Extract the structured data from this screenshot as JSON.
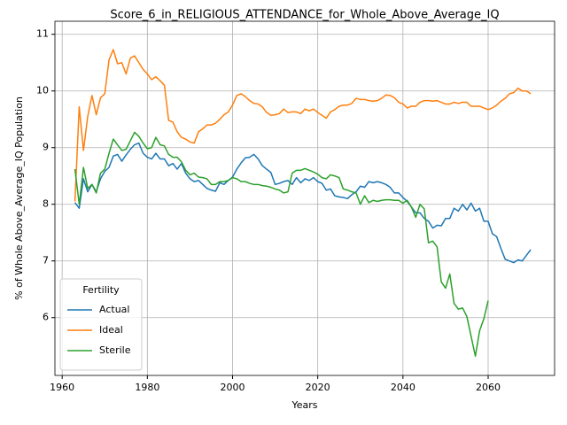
{
  "chart_data": {
    "type": "line",
    "title": "Score_6_in_RELIGIOUS_ATTENDANCE_for_Whole_Above_Average_IQ",
    "xlabel": "Years",
    "ylabel": "% of Whole Above_Average_IQ Population",
    "legend_title": "Fertility",
    "legend_position": "lower left",
    "grid": true,
    "xlim": [
      1958.3,
      2075.6
    ],
    "ylim": [
      4.98,
      11.23
    ],
    "xticks": [
      1960,
      1980,
      2000,
      2020,
      2040,
      2060
    ],
    "yticks": [
      6,
      7,
      8,
      9,
      10,
      11
    ],
    "x": [
      1963,
      1964,
      1965,
      1966,
      1967,
      1968,
      1969,
      1970,
      1971,
      1972,
      1973,
      1974,
      1975,
      1976,
      1977,
      1978,
      1979,
      1980,
      1981,
      1982,
      1983,
      1984,
      1985,
      1986,
      1987,
      1988,
      1989,
      1990,
      1991,
      1992,
      1993,
      1994,
      1995,
      1996,
      1997,
      1998,
      1999,
      2000,
      2001,
      2002,
      2003,
      2004,
      2005,
      2006,
      2007,
      2008,
      2009,
      2010,
      2011,
      2012,
      2013,
      2014,
      2015,
      2016,
      2017,
      2018,
      2019,
      2020,
      2021,
      2022,
      2023,
      2024,
      2025,
      2026,
      2027,
      2028,
      2029,
      2030,
      2031,
      2032,
      2033,
      2034,
      2035,
      2036,
      2037,
      2038,
      2039,
      2040,
      2041,
      2042,
      2043,
      2044,
      2045,
      2046,
      2047,
      2048,
      2049,
      2050,
      2051,
      2052,
      2053,
      2054,
      2055,
      2056,
      2057,
      2058,
      2059,
      2060,
      2061,
      2062,
      2063,
      2064,
      2065,
      2066,
      2067,
      2068,
      2069,
      2070
    ],
    "series": [
      {
        "name": "Actual",
        "color": "#1f77b4",
        "values": [
          8.03,
          7.93,
          8.45,
          8.22,
          8.35,
          8.22,
          8.45,
          8.58,
          8.65,
          8.85,
          8.88,
          8.76,
          8.87,
          8.97,
          9.05,
          9.08,
          8.9,
          8.83,
          8.8,
          8.9,
          8.8,
          8.8,
          8.68,
          8.72,
          8.62,
          8.72,
          8.55,
          8.45,
          8.4,
          8.42,
          8.35,
          8.28,
          8.25,
          8.23,
          8.38,
          8.35,
          8.42,
          8.48,
          8.62,
          8.73,
          8.82,
          8.83,
          8.88,
          8.8,
          8.68,
          8.62,
          8.56,
          8.35,
          8.37,
          8.4,
          8.42,
          8.35,
          8.47,
          8.38,
          8.45,
          8.42,
          8.47,
          8.4,
          8.37,
          8.25,
          8.27,
          8.15,
          8.13,
          8.12,
          8.1,
          8.17,
          8.22,
          8.32,
          8.3,
          8.4,
          8.38,
          8.4,
          8.38,
          8.35,
          8.3,
          8.2,
          8.2,
          8.12,
          8.05,
          7.95,
          7.85,
          7.85,
          7.75,
          7.7,
          7.58,
          7.63,
          7.62,
          7.75,
          7.75,
          7.93,
          7.88,
          8.0,
          7.9,
          8.02,
          7.88,
          7.93,
          7.7,
          7.7,
          7.48,
          7.43,
          7.22,
          7.03,
          7.0,
          6.97,
          7.02,
          7.0,
          7.1,
          7.2
        ]
      },
      {
        "name": "Ideal",
        "color": "#ff7f0e",
        "values": [
          8.05,
          9.72,
          8.95,
          9.55,
          9.92,
          9.58,
          9.88,
          9.95,
          10.55,
          10.73,
          10.48,
          10.5,
          10.3,
          10.58,
          10.62,
          10.5,
          10.38,
          10.3,
          10.2,
          10.25,
          10.18,
          10.1,
          9.48,
          9.45,
          9.28,
          9.18,
          9.15,
          9.1,
          9.08,
          9.28,
          9.33,
          9.4,
          9.4,
          9.43,
          9.5,
          9.58,
          9.63,
          9.75,
          9.92,
          9.95,
          9.9,
          9.83,
          9.78,
          9.77,
          9.72,
          9.62,
          9.57,
          9.58,
          9.6,
          9.68,
          9.62,
          9.63,
          9.63,
          9.6,
          9.68,
          9.65,
          9.68,
          9.62,
          9.57,
          9.52,
          9.63,
          9.67,
          9.73,
          9.75,
          9.75,
          9.78,
          9.87,
          9.85,
          9.85,
          9.83,
          9.82,
          9.83,
          9.87,
          9.93,
          9.92,
          9.88,
          9.8,
          9.77,
          9.7,
          9.73,
          9.73,
          9.8,
          9.83,
          9.83,
          9.82,
          9.83,
          9.8,
          9.77,
          9.77,
          9.8,
          9.78,
          9.8,
          9.8,
          9.73,
          9.73,
          9.73,
          9.7,
          9.67,
          9.7,
          9.75,
          9.82,
          9.87,
          9.95,
          9.97,
          10.05,
          10.0,
          10.0,
          9.95
        ]
      },
      {
        "name": "Sterile",
        "color": "#2ca02c",
        "values": [
          8.62,
          8.0,
          8.65,
          8.28,
          8.35,
          8.2,
          8.55,
          8.62,
          8.9,
          9.15,
          9.05,
          8.95,
          8.97,
          9.12,
          9.27,
          9.2,
          9.08,
          8.98,
          9.0,
          9.18,
          9.05,
          9.03,
          8.88,
          8.83,
          8.83,
          8.75,
          8.6,
          8.52,
          8.55,
          8.48,
          8.47,
          8.45,
          8.35,
          8.35,
          8.4,
          8.4,
          8.42,
          8.47,
          8.45,
          8.4,
          8.4,
          8.37,
          8.35,
          8.35,
          8.33,
          8.32,
          8.3,
          8.27,
          8.25,
          8.2,
          8.22,
          8.55,
          8.6,
          8.6,
          8.63,
          8.6,
          8.57,
          8.53,
          8.47,
          8.45,
          8.52,
          8.5,
          8.47,
          8.27,
          8.25,
          8.22,
          8.2,
          8.0,
          8.15,
          8.03,
          8.07,
          8.05,
          8.07,
          8.08,
          8.08,
          8.07,
          8.07,
          8.02,
          8.07,
          7.95,
          7.77,
          8.0,
          7.92,
          7.32,
          7.35,
          7.25,
          6.63,
          6.52,
          6.77,
          6.25,
          6.15,
          6.17,
          6.02,
          5.67,
          5.32,
          5.77,
          5.98,
          6.3,
          null,
          null,
          null,
          null,
          null,
          null,
          null,
          null,
          null,
          null
        ]
      }
    ]
  }
}
